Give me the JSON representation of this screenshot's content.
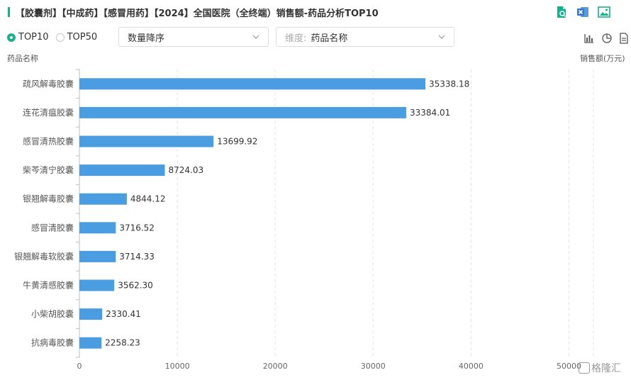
{
  "header": {
    "title": "【胶囊剂】【中成药】【感冒用药】【2024】全国医院（全终端）销售额-药品分析TOP10"
  },
  "toolbar_icons": [
    "document-search-icon",
    "excel-export-icon",
    "image-export-icon"
  ],
  "controls": {
    "radios": [
      {
        "label": "TOP10",
        "checked": true
      },
      {
        "label": "TOP50",
        "checked": false
      }
    ],
    "sort_select": {
      "value": "数量降序"
    },
    "dimension_select": {
      "prefix": "维度:",
      "value": "药品名称"
    }
  },
  "view_icons": [
    "bar-chart-icon",
    "pie-chart-icon",
    "table-icon"
  ],
  "chart_data": {
    "type": "bar",
    "orientation": "horizontal",
    "ylabel": "药品名称",
    "xlabel": "销售额(万元)",
    "categories": [
      "疏风解毒胶囊",
      "连花清瘟胶囊",
      "感冒清热胶囊",
      "柴芩清宁胶囊",
      "银翘解毒胶囊",
      "感冒清胶囊",
      "银翘解毒软胶囊",
      "牛黄清感胶囊",
      "小柴胡胶囊",
      "抗病毒胶囊"
    ],
    "values": [
      35338.18,
      33384.01,
      13699.92,
      8724.03,
      4844.12,
      3716.52,
      3714.33,
      3562.3,
      2330.41,
      2258.23
    ],
    "value_labels": [
      "35338.18",
      "33384.01",
      "13699.92",
      "8724.03",
      "4844.12",
      "3716.52",
      "3714.33",
      "3562.30",
      "2330.41",
      "2258.23"
    ],
    "xticks": [
      0,
      10000,
      20000,
      30000,
      40000,
      50000
    ],
    "xlim": [
      0,
      52500
    ],
    "grid": true,
    "color": "#4a9de0"
  },
  "watermark": {
    "text": "格隆汇"
  }
}
